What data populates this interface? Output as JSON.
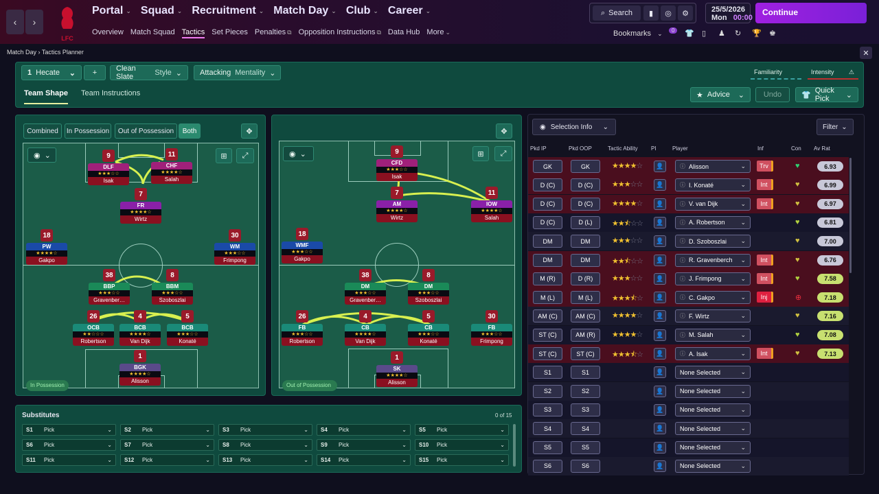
{
  "nav": {
    "club_logo_text": "LFC",
    "main": [
      "Portal",
      "Squad",
      "Recruitment",
      "Match Day",
      "Club",
      "Career"
    ],
    "active_main": "Match Day",
    "sub": [
      "Overview",
      "Match Squad",
      "Tactics",
      "Set Pieces",
      "Penalties",
      "Opposition Instructions",
      "Data Hub",
      "More"
    ],
    "active_sub": "Tactics",
    "search_label": "Search",
    "date": "25/5/2026",
    "day": "Mon",
    "time": "00:00",
    "continue_label": "Continue",
    "bookmarks_label": "Bookmarks",
    "badge_count": "0"
  },
  "breadcrumb": [
    "Match Day",
    "Tactics Planner"
  ],
  "tactic": {
    "slot": "1",
    "name": "Hecate",
    "add_label": "+",
    "style_value": "Clean Slate",
    "style_label": "Style",
    "mentality_value": "Attacking",
    "mentality_label": "Mentality",
    "familiarity_label": "Familiarity",
    "intensity_label": "Intensity"
  },
  "tabs": [
    "Team Shape",
    "Team Instructions"
  ],
  "actions": {
    "advice": "Advice",
    "undo": "Undo",
    "quick_pick": "Quick Pick"
  },
  "phase_toggle": [
    "Combined",
    "In Possession",
    "Out of Possession",
    "Both"
  ],
  "active_phase": "Both",
  "in_possession_label": "In Possession",
  "out_possession_label": "Out of Possession",
  "ip_players": [
    {
      "num": "9",
      "role": "DLF",
      "name": "Isak",
      "stars": "★★★☆☆",
      "color": "#a0207a"
    },
    {
      "num": "11",
      "role": "CHF",
      "name": "Salah",
      "stars": "★★★★☆",
      "color": "#a0207a"
    },
    {
      "num": "7",
      "role": "FR",
      "name": "Wirtz",
      "stars": "★★★★☆",
      "color": "#8a20a8"
    },
    {
      "num": "18",
      "role": "PW",
      "name": "Gakpo",
      "stars": "★★★★☆",
      "color": "#1a4aa8"
    },
    {
      "num": "30",
      "role": "WM",
      "name": "Frimpong",
      "stars": "★★★☆☆",
      "color": "#1a4aa8"
    },
    {
      "num": "38",
      "role": "BBP",
      "name": "Gravenber…",
      "stars": "★★★☆☆",
      "color": "#1a8a58"
    },
    {
      "num": "8",
      "role": "BBM",
      "name": "Szoboszlai",
      "stars": "★★★☆☆",
      "color": "#1a8a58"
    },
    {
      "num": "26",
      "role": "OCB",
      "name": "Robertson",
      "stars": "★★☆☆☆",
      "color": "#1a8a78"
    },
    {
      "num": "4",
      "role": "BCB",
      "name": "Van Dijk",
      "stars": "★★★★☆",
      "color": "#1a8a78"
    },
    {
      "num": "5",
      "role": "BCB",
      "name": "Konaté",
      "stars": "★★★☆☆",
      "color": "#1a8a78"
    },
    {
      "num": "1",
      "role": "BGK",
      "name": "Alisson",
      "stars": "★★★★☆",
      "color": "#5a4a8a"
    }
  ],
  "oop_players": [
    {
      "num": "9",
      "role": "CFD",
      "name": "Isak",
      "stars": "★★★☆☆",
      "color": "#a0207a"
    },
    {
      "num": "7",
      "role": "AM",
      "name": "Wirtz",
      "stars": "★★★★☆",
      "color": "#8a20a8"
    },
    {
      "num": "11",
      "role": "IOW",
      "name": "Salah",
      "stars": "★★★★☆",
      "color": "#8a20a8"
    },
    {
      "num": "18",
      "role": "WMF",
      "name": "Gakpo",
      "stars": "★★★☆☆",
      "color": "#1a4aa8"
    },
    {
      "num": "38",
      "role": "DM",
      "name": "Gravenber…",
      "stars": "★★★☆☆",
      "color": "#1a8a58"
    },
    {
      "num": "8",
      "role": "DM",
      "name": "Szoboszlai",
      "stars": "★★★☆☆",
      "color": "#1a8a58"
    },
    {
      "num": "26",
      "role": "FB",
      "name": "Robertson",
      "stars": "★★★☆☆",
      "color": "#1a8a78"
    },
    {
      "num": "4",
      "role": "CB",
      "name": "Van Dijk",
      "stars": "★★★★☆",
      "color": "#1a8a78"
    },
    {
      "num": "5",
      "role": "CB",
      "name": "Konaté",
      "stars": "★★★☆☆",
      "color": "#1a8a78"
    },
    {
      "num": "30",
      "role": "FB",
      "name": "Frimpong",
      "stars": "★★★☆☆",
      "color": "#1a8a78"
    },
    {
      "num": "1",
      "role": "SK",
      "name": "Alisson",
      "stars": "★★★★☆",
      "color": "#5a4a8a"
    }
  ],
  "substitutes": {
    "title": "Substitutes",
    "count": "0 of 15",
    "slots": [
      "S1",
      "S2",
      "S3",
      "S4",
      "S5",
      "S6",
      "S7",
      "S8",
      "S9",
      "S10",
      "S11",
      "S12",
      "S13",
      "S14",
      "S15"
    ],
    "pick_label": "Pick"
  },
  "selection": {
    "info_label": "Selection Info",
    "filter_label": "Filter",
    "headers": [
      "Pkd IP",
      "Pkd OOP",
      "Tactic Ability",
      "PI",
      "Player",
      "Inf",
      "Con",
      "Av Rat"
    ],
    "rows": [
      {
        "ip": "GK",
        "oop": "GK",
        "stars": 4,
        "player": "Alisson",
        "inf": "Trv",
        "rat": "6.93",
        "hl": true
      },
      {
        "ip": "D (C)",
        "oop": "D (C)",
        "stars": 3,
        "player": "I. Konaté",
        "inf": "Int",
        "rat": "6.99",
        "hl": true
      },
      {
        "ip": "D (C)",
        "oop": "D (C)",
        "stars": 4,
        "player": "V. van Dijk",
        "inf": "Int",
        "rat": "6.97",
        "hl": true
      },
      {
        "ip": "D (C)",
        "oop": "D (L)",
        "stars": 2.5,
        "player": "A. Robertson",
        "inf": "",
        "rat": "6.81",
        "hl": false
      },
      {
        "ip": "DM",
        "oop": "DM",
        "stars": 3,
        "player": "D. Szoboszlai",
        "inf": "",
        "rat": "7.00",
        "hl": false
      },
      {
        "ip": "DM",
        "oop": "DM",
        "stars": 2.5,
        "player": "R. Gravenberch",
        "inf": "Int",
        "rat": "6.76",
        "hl": true
      },
      {
        "ip": "M (R)",
        "oop": "D (R)",
        "stars": 3,
        "player": "J. Frimpong",
        "inf": "Int",
        "rat": "7.58",
        "hl": true
      },
      {
        "ip": "M (L)",
        "oop": "M (L)",
        "stars": 3.5,
        "player": "C. Gakpo",
        "inf": "Inj",
        "rat": "7.18",
        "hl": true
      },
      {
        "ip": "AM (C)",
        "oop": "AM (C)",
        "stars": 4,
        "player": "F. Wirtz",
        "inf": "",
        "rat": "7.16",
        "hl": false
      },
      {
        "ip": "ST (C)",
        "oop": "AM (R)",
        "stars": 4,
        "player": "M. Salah",
        "inf": "",
        "rat": "7.08",
        "hl": false
      },
      {
        "ip": "ST (C)",
        "oop": "ST (C)",
        "stars": 3.5,
        "player": "A. Isak",
        "inf": "Int",
        "rat": "7.13",
        "hl": true
      },
      {
        "ip": "S1",
        "oop": "S1",
        "stars": 0,
        "player": "None Selected",
        "inf": "",
        "rat": "",
        "hl": false
      },
      {
        "ip": "S2",
        "oop": "S2",
        "stars": 0,
        "player": "None Selected",
        "inf": "",
        "rat": "",
        "hl": false
      },
      {
        "ip": "S3",
        "oop": "S3",
        "stars": 0,
        "player": "None Selected",
        "inf": "",
        "rat": "",
        "hl": false
      },
      {
        "ip": "S4",
        "oop": "S4",
        "stars": 0,
        "player": "None Selected",
        "inf": "",
        "rat": "",
        "hl": false
      },
      {
        "ip": "S5",
        "oop": "S5",
        "stars": 0,
        "player": "None Selected",
        "inf": "",
        "rat": "",
        "hl": false
      },
      {
        "ip": "S6",
        "oop": "S6",
        "stars": 0,
        "player": "None Selected",
        "inf": "",
        "rat": "",
        "hl": false
      }
    ]
  }
}
